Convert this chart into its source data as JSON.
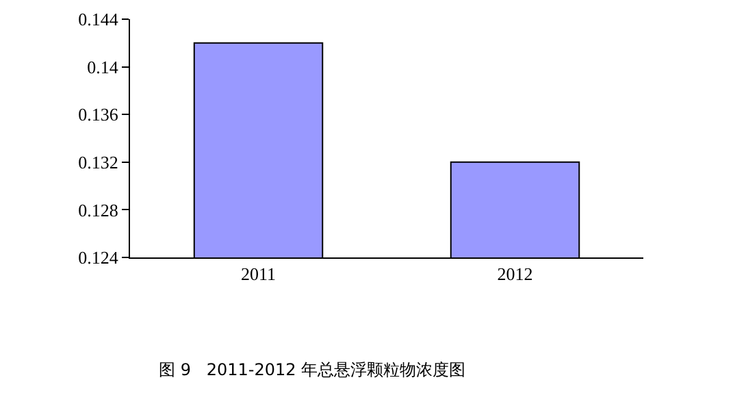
{
  "chart_data": {
    "type": "bar",
    "categories": [
      "2011",
      "2012"
    ],
    "values": [
      0.142,
      0.132
    ],
    "color": "#9999ff",
    "ylim": [
      0.124,
      0.144
    ],
    "yticks": [
      0.124,
      0.128,
      0.132,
      0.136,
      0.14,
      0.144
    ],
    "grid": false,
    "annotations": [
      "图 9   2011-2012 年总悬浮颗粒物浓度图"
    ]
  }
}
